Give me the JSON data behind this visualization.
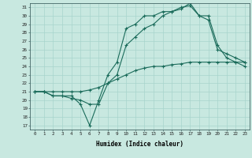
{
  "bg_color": "#c8e8e0",
  "line_color": "#1a6b5a",
  "grid_color": "#a8d4cc",
  "xlim": [
    -0.5,
    23.5
  ],
  "ylim": [
    16.5,
    31.5
  ],
  "xticks": [
    0,
    1,
    2,
    3,
    4,
    5,
    6,
    7,
    8,
    9,
    10,
    11,
    12,
    13,
    14,
    15,
    16,
    17,
    18,
    19,
    20,
    21,
    22,
    23
  ],
  "yticks": [
    17,
    18,
    19,
    20,
    21,
    22,
    23,
    24,
    25,
    26,
    27,
    28,
    29,
    30,
    31
  ],
  "xlabel": "Humidex (Indice chaleur)",
  "line1_x": [
    0,
    1,
    2,
    3,
    4,
    5,
    6,
    7,
    8,
    9,
    10,
    11,
    12,
    13,
    14,
    15,
    16,
    17,
    18,
    19,
    20,
    21,
    22,
    23
  ],
  "line1_y": [
    21.0,
    21.0,
    20.5,
    20.5,
    20.5,
    19.5,
    17.0,
    20.0,
    23.0,
    24.5,
    28.5,
    29.0,
    30.0,
    30.0,
    30.5,
    30.5,
    31.0,
    31.2,
    30.0,
    29.5,
    26.0,
    25.5,
    25.0,
    24.5
  ],
  "line2_x": [
    0,
    1,
    2,
    3,
    4,
    5,
    6,
    7,
    8,
    9,
    10,
    11,
    12,
    13,
    14,
    15,
    16,
    17,
    18,
    19,
    20,
    21,
    22,
    23
  ],
  "line2_y": [
    21.0,
    21.0,
    20.5,
    20.5,
    20.2,
    20.0,
    19.5,
    19.5,
    22.0,
    23.0,
    26.5,
    27.5,
    28.5,
    29.0,
    30.0,
    30.5,
    30.8,
    31.5,
    30.0,
    30.0,
    26.5,
    25.0,
    24.5,
    24.0
  ],
  "line3_x": [
    0,
    1,
    2,
    3,
    4,
    5,
    6,
    7,
    8,
    9,
    10,
    11,
    12,
    13,
    14,
    15,
    16,
    17,
    18,
    19,
    20,
    21,
    22,
    23
  ],
  "line3_y": [
    21.0,
    21.0,
    21.0,
    21.0,
    21.0,
    21.0,
    21.2,
    21.5,
    22.0,
    22.5,
    23.0,
    23.5,
    23.8,
    24.0,
    24.0,
    24.2,
    24.3,
    24.5,
    24.5,
    24.5,
    24.5,
    24.5,
    24.5,
    24.5
  ]
}
